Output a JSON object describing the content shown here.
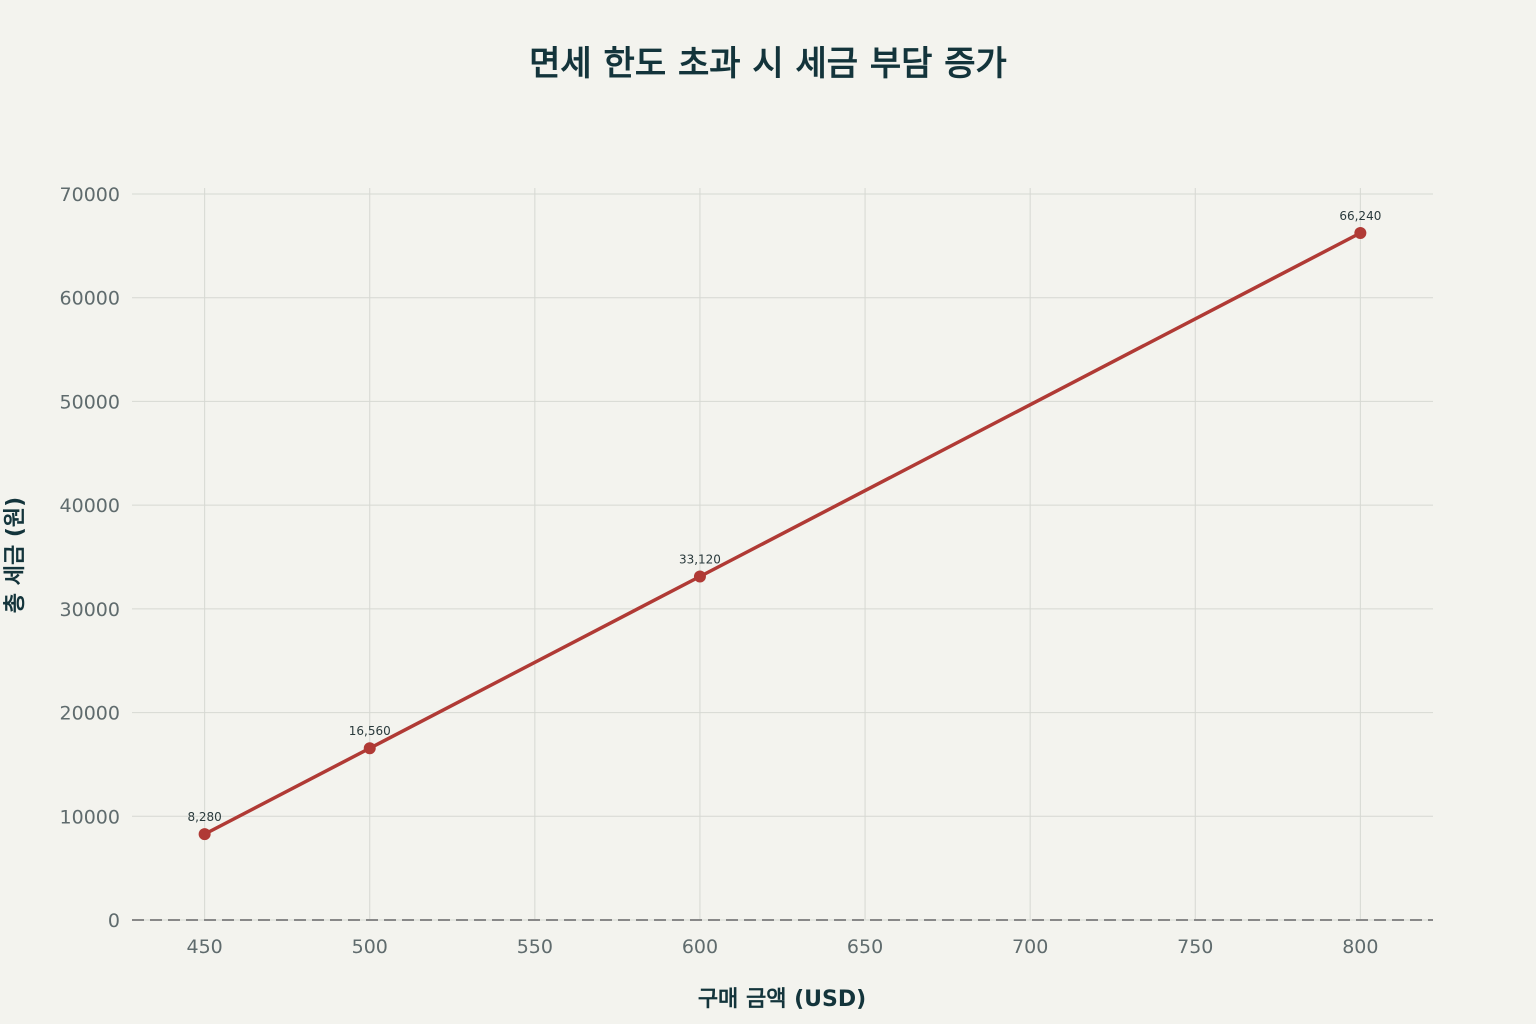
{
  "chart_data": {
    "type": "line",
    "title": "면세 한도 초과 시 세금 부담 증가",
    "xlabel": "구매 금액 (USD)",
    "ylabel": "총 세금 (원)",
    "xlim": [
      428,
      822
    ],
    "ylim": [
      0,
      70000
    ],
    "x_ticks": [
      450,
      500,
      550,
      600,
      650,
      700,
      750,
      800
    ],
    "y_ticks": [
      0,
      10000,
      20000,
      30000,
      40000,
      50000,
      60000,
      70000
    ],
    "grid": true,
    "series": [
      {
        "x": [
          450,
          500,
          600,
          800
        ],
        "values": [
          8280,
          16560,
          33120,
          66240
        ],
        "labels": [
          "8,280",
          "16,560",
          "33,120",
          "66,240"
        ],
        "color": "#b03a35"
      }
    ],
    "baseline": {
      "y": 0,
      "style": "dashed",
      "color": "#888888"
    },
    "colors": {
      "background": "#f3f3ee",
      "grid": "#d6d8d2",
      "text": "#13343b",
      "tick_text": "#5f6b6d"
    }
  }
}
